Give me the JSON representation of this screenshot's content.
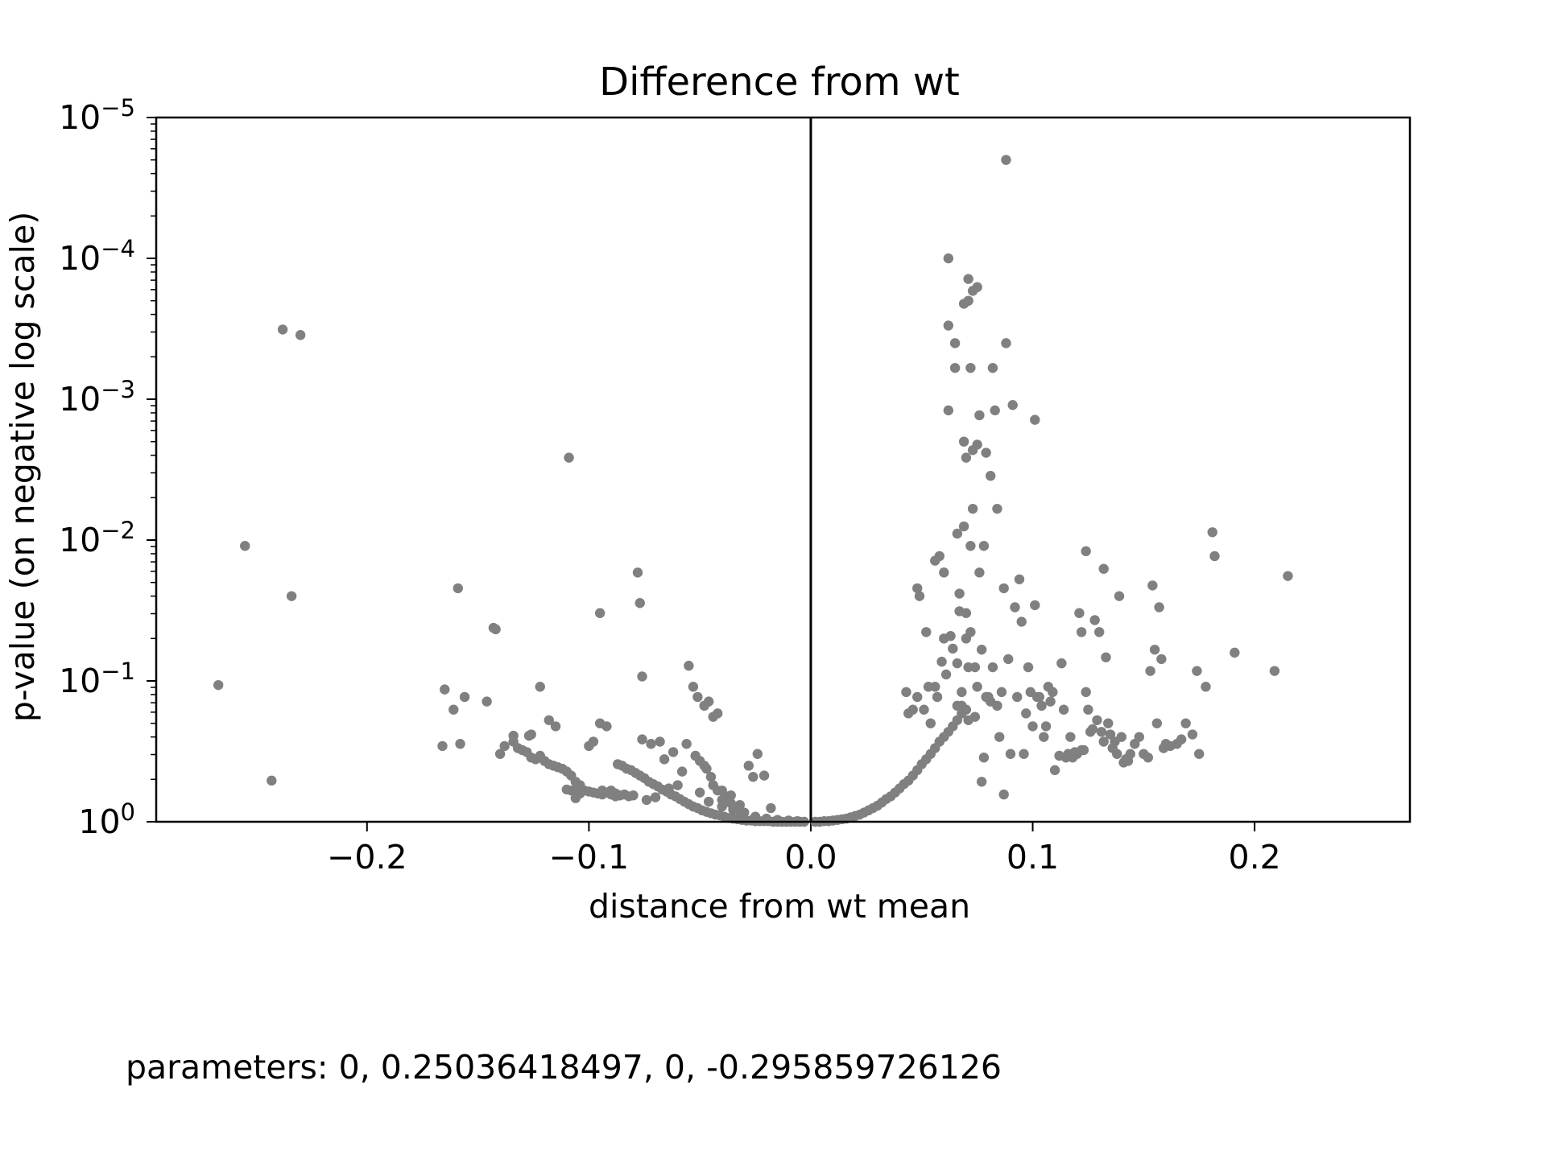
{
  "chart_data": {
    "type": "scatter",
    "title": "Difference from wt",
    "xlabel": "distance from wt mean",
    "ylabel": "p-value (on negative log scale)",
    "xlim": [
      -0.295,
      0.27
    ],
    "ylim": [
      1,
      1e-05
    ],
    "y_scale": "negative log",
    "xticks": [
      {
        "value": -0.2,
        "label": "−0.2"
      },
      {
        "value": -0.1,
        "label": "−0.1"
      },
      {
        "value": 0.0,
        "label": "0.0"
      },
      {
        "value": 0.1,
        "label": "0.1"
      },
      {
        "value": 0.2,
        "label": "0.2"
      }
    ],
    "yticks": [
      {
        "exp": 0,
        "base": "10",
        "sup": "0"
      },
      {
        "exp": -1,
        "base": "10",
        "sup": "−1"
      },
      {
        "exp": -2,
        "base": "10",
        "sup": "−2"
      },
      {
        "exp": -3,
        "base": "10",
        "sup": "−3"
      },
      {
        "exp": -4,
        "base": "10",
        "sup": "−4"
      },
      {
        "exp": -5,
        "base": "10",
        "sup": "−5"
      }
    ],
    "reference_line_x": 0.0,
    "point_color": "#808080",
    "grid": false,
    "legend": "none",
    "points": [
      [
        -0.267,
        0.107
      ],
      [
        -0.255,
        0.011
      ],
      [
        -0.243,
        0.51
      ],
      [
        -0.238,
        0.00032
      ],
      [
        -0.234,
        0.025
      ],
      [
        -0.23,
        0.00035
      ],
      [
        -0.166,
        0.29
      ],
      [
        -0.165,
        0.115
      ],
      [
        -0.161,
        0.16
      ],
      [
        -0.159,
        0.022
      ],
      [
        -0.158,
        0.28
      ],
      [
        -0.156,
        0.13
      ],
      [
        -0.146,
        0.14
      ],
      [
        -0.143,
        0.042
      ],
      [
        -0.142,
        0.043
      ],
      [
        -0.14,
        0.33
      ],
      [
        -0.138,
        0.29
      ],
      [
        -0.134,
        0.27
      ],
      [
        -0.132,
        0.3
      ],
      [
        -0.13,
        0.31
      ],
      [
        -0.128,
        0.32
      ],
      [
        -0.127,
        0.245
      ],
      [
        -0.126,
        0.35
      ],
      [
        -0.124,
        0.36
      ],
      [
        -0.122,
        0.34
      ],
      [
        -0.12,
        0.37
      ],
      [
        -0.118,
        0.39
      ],
      [
        -0.116,
        0.4
      ],
      [
        -0.114,
        0.41
      ],
      [
        -0.112,
        0.42
      ],
      [
        -0.11,
        0.44
      ],
      [
        -0.109,
        0.0026
      ],
      [
        -0.108,
        0.47
      ],
      [
        -0.106,
        0.52
      ],
      [
        -0.104,
        0.55
      ],
      [
        -0.102,
        0.6
      ],
      [
        -0.1,
        0.61
      ],
      [
        -0.098,
        0.62
      ],
      [
        -0.096,
        0.63
      ],
      [
        -0.095,
        0.033
      ],
      [
        -0.094,
        0.6
      ],
      [
        -0.092,
        0.62
      ],
      [
        -0.09,
        0.64
      ],
      [
        -0.088,
        0.63
      ],
      [
        -0.086,
        0.65
      ],
      [
        -0.084,
        0.64
      ],
      [
        -0.082,
        0.66
      ],
      [
        -0.08,
        0.65
      ],
      [
        -0.078,
        0.017
      ],
      [
        -0.077,
        0.028
      ],
      [
        -0.076,
        0.093
      ],
      [
        -0.11,
        0.59
      ],
      [
        -0.108,
        0.6
      ],
      [
        -0.106,
        0.6
      ],
      [
        -0.122,
        0.11
      ],
      [
        -0.126,
        0.24
      ],
      [
        -0.134,
        0.245
      ],
      [
        -0.118,
        0.19
      ],
      [
        -0.115,
        0.21
      ],
      [
        -0.1,
        0.29
      ],
      [
        -0.098,
        0.27
      ],
      [
        -0.095,
        0.2
      ],
      [
        -0.092,
        0.21
      ],
      [
        -0.087,
        0.39
      ],
      [
        -0.085,
        0.4
      ],
      [
        -0.083,
        0.42
      ],
      [
        -0.081,
        0.43
      ],
      [
        -0.079,
        0.45
      ],
      [
        -0.077,
        0.47
      ],
      [
        -0.075,
        0.49
      ],
      [
        -0.073,
        0.52
      ],
      [
        -0.071,
        0.54
      ],
      [
        -0.069,
        0.56
      ],
      [
        -0.067,
        0.59
      ],
      [
        -0.065,
        0.61
      ],
      [
        -0.063,
        0.64
      ],
      [
        -0.061,
        0.66
      ],
      [
        -0.059,
        0.69
      ],
      [
        -0.057,
        0.72
      ],
      [
        -0.055,
        0.75
      ],
      [
        -0.053,
        0.78
      ],
      [
        -0.051,
        0.8
      ],
      [
        -0.049,
        0.83
      ],
      [
        -0.047,
        0.85
      ],
      [
        -0.045,
        0.87
      ],
      [
        -0.043,
        0.89
      ],
      [
        -0.041,
        0.9
      ],
      [
        -0.039,
        0.92
      ],
      [
        -0.037,
        0.94
      ],
      [
        -0.035,
        0.95
      ],
      [
        -0.033,
        0.96
      ],
      [
        -0.031,
        0.97
      ],
      [
        -0.029,
        0.98
      ],
      [
        -0.027,
        0.98
      ],
      [
        -0.025,
        0.99
      ],
      [
        -0.023,
        0.99
      ],
      [
        -0.021,
        0.99
      ],
      [
        -0.019,
        0.99
      ],
      [
        -0.017,
        1.0
      ],
      [
        -0.015,
        1.0
      ],
      [
        -0.013,
        1.0
      ],
      [
        -0.011,
        1.0
      ],
      [
        -0.009,
        1.0
      ],
      [
        -0.007,
        1.0
      ],
      [
        -0.005,
        1.0
      ],
      [
        -0.003,
        1.0
      ],
      [
        -0.076,
        0.26
      ],
      [
        -0.072,
        0.28
      ],
      [
        -0.068,
        0.27
      ],
      [
        -0.066,
        0.36
      ],
      [
        -0.062,
        0.32
      ],
      [
        -0.058,
        0.44
      ],
      [
        -0.055,
        0.078
      ],
      [
        -0.053,
        0.11
      ],
      [
        -0.051,
        0.13
      ],
      [
        -0.048,
        0.15
      ],
      [
        -0.046,
        0.14
      ],
      [
        -0.044,
        0.18
      ],
      [
        -0.042,
        0.17
      ],
      [
        -0.056,
        0.28
      ],
      [
        -0.052,
        0.34
      ],
      [
        -0.048,
        0.4
      ],
      [
        -0.045,
        0.48
      ],
      [
        -0.04,
        0.6
      ],
      [
        -0.036,
        0.65
      ],
      [
        -0.032,
        0.76
      ],
      [
        -0.028,
        0.4
      ],
      [
        -0.026,
        0.48
      ],
      [
        -0.024,
        0.33
      ],
      [
        -0.021,
        0.47
      ],
      [
        -0.018,
        0.8
      ],
      [
        -0.06,
        0.55
      ],
      [
        -0.064,
        0.58
      ],
      [
        -0.05,
        0.62
      ],
      [
        -0.046,
        0.72
      ],
      [
        -0.04,
        0.78
      ],
      [
        -0.035,
        0.82
      ],
      [
        -0.03,
        0.86
      ],
      [
        -0.025,
        0.92
      ],
      [
        -0.02,
        0.95
      ],
      [
        -0.015,
        0.97
      ],
      [
        -0.01,
        0.98
      ],
      [
        -0.006,
        0.99
      ],
      [
        -0.07,
        0.67
      ],
      [
        -0.074,
        0.7
      ],
      [
        -0.09,
        0.6
      ],
      [
        -0.088,
        0.66
      ],
      [
        -0.094,
        0.64
      ],
      [
        -0.104,
        0.63
      ],
      [
        -0.106,
        0.68
      ],
      [
        -0.04,
        0.7
      ],
      [
        -0.038,
        0.66
      ],
      [
        -0.036,
        0.74
      ],
      [
        -0.034,
        0.8
      ],
      [
        -0.032,
        0.84
      ],
      [
        -0.044,
        0.55
      ],
      [
        -0.042,
        0.6
      ],
      [
        -0.047,
        0.42
      ],
      [
        -0.05,
        0.37
      ],
      [
        0.002,
        1.0
      ],
      [
        0.004,
        1.0
      ],
      [
        0.006,
        0.99
      ],
      [
        0.008,
        0.99
      ],
      [
        0.01,
        0.98
      ],
      [
        0.012,
        0.97
      ],
      [
        0.014,
        0.96
      ],
      [
        0.016,
        0.95
      ],
      [
        0.018,
        0.93
      ],
      [
        0.02,
        0.91
      ],
      [
        0.022,
        0.89
      ],
      [
        0.024,
        0.86
      ],
      [
        0.026,
        0.83
      ],
      [
        0.028,
        0.8
      ],
      [
        0.03,
        0.77
      ],
      [
        0.032,
        0.73
      ],
      [
        0.034,
        0.69
      ],
      [
        0.036,
        0.66
      ],
      [
        0.038,
        0.62
      ],
      [
        0.04,
        0.58
      ],
      [
        0.042,
        0.54
      ],
      [
        0.044,
        0.51
      ],
      [
        0.046,
        0.47
      ],
      [
        0.048,
        0.43
      ],
      [
        0.05,
        0.39
      ],
      [
        0.052,
        0.36
      ],
      [
        0.054,
        0.33
      ],
      [
        0.056,
        0.3
      ],
      [
        0.058,
        0.27
      ],
      [
        0.06,
        0.25
      ],
      [
        0.062,
        0.23
      ],
      [
        0.064,
        0.21
      ],
      [
        0.066,
        0.19
      ],
      [
        0.068,
        0.17
      ],
      [
        0.07,
        0.16
      ],
      [
        0.043,
        0.12
      ],
      [
        0.044,
        0.17
      ],
      [
        0.046,
        0.16
      ],
      [
        0.048,
        0.13
      ],
      [
        0.048,
        0.022
      ],
      [
        0.049,
        0.025
      ],
      [
        0.051,
        0.16
      ],
      [
        0.052,
        0.045
      ],
      [
        0.053,
        0.11
      ],
      [
        0.054,
        0.2
      ],
      [
        0.056,
        0.11
      ],
      [
        0.056,
        0.014
      ],
      [
        0.057,
        0.13
      ],
      [
        0.058,
        0.013
      ],
      [
        0.059,
        0.073
      ],
      [
        0.06,
        0.05
      ],
      [
        0.06,
        0.017
      ],
      [
        0.061,
        0.09
      ],
      [
        0.062,
        0.0012
      ],
      [
        0.062,
        0.0003
      ],
      [
        0.062,
        0.0001
      ],
      [
        0.063,
        0.048
      ],
      [
        0.064,
        0.059
      ],
      [
        0.065,
        0.0006
      ],
      [
        0.065,
        0.0004
      ],
      [
        0.066,
        0.15
      ],
      [
        0.066,
        0.075
      ],
      [
        0.066,
        0.009
      ],
      [
        0.067,
        0.032
      ],
      [
        0.067,
        0.024
      ],
      [
        0.068,
        0.12
      ],
      [
        0.068,
        0.15
      ],
      [
        0.069,
        0.008
      ],
      [
        0.069,
        0.002
      ],
      [
        0.069,
        0.00021
      ],
      [
        0.07,
        0.0026
      ],
      [
        0.07,
        0.05
      ],
      [
        0.07,
        0.033
      ],
      [
        0.071,
        0.00014
      ],
      [
        0.071,
        0.0002
      ],
      [
        0.071,
        0.08
      ],
      [
        0.071,
        0.19
      ],
      [
        0.072,
        0.011
      ],
      [
        0.072,
        0.0006
      ],
      [
        0.072,
        0.045
      ],
      [
        0.073,
        0.0023
      ],
      [
        0.073,
        0.006
      ],
      [
        0.073,
        0.00017
      ],
      [
        0.074,
        0.18
      ],
      [
        0.074,
        0.08
      ],
      [
        0.075,
        0.00016
      ],
      [
        0.075,
        0.0021
      ],
      [
        0.075,
        0.11
      ],
      [
        0.076,
        0.0013
      ],
      [
        0.076,
        0.017
      ],
      [
        0.077,
        0.06
      ],
      [
        0.077,
        0.52
      ],
      [
        0.078,
        0.35
      ],
      [
        0.078,
        0.011
      ],
      [
        0.079,
        0.13
      ],
      [
        0.079,
        0.0024
      ],
      [
        0.08,
        0.13
      ],
      [
        0.081,
        0.0035
      ],
      [
        0.081,
        0.14
      ],
      [
        0.082,
        0.08
      ],
      [
        0.082,
        0.0006
      ],
      [
        0.083,
        0.0012
      ],
      [
        0.084,
        0.006
      ],
      [
        0.084,
        0.15
      ],
      [
        0.085,
        0.25
      ],
      [
        0.086,
        0.12
      ],
      [
        0.087,
        0.022
      ],
      [
        0.087,
        0.64
      ],
      [
        0.088,
        0.0004
      ],
      [
        0.088,
        2e-05
      ],
      [
        0.089,
        0.07
      ],
      [
        0.09,
        0.33
      ],
      [
        0.091,
        0.0011
      ],
      [
        0.092,
        0.03
      ],
      [
        0.093,
        0.13
      ],
      [
        0.094,
        0.019
      ],
      [
        0.095,
        0.038
      ],
      [
        0.096,
        0.33
      ],
      [
        0.097,
        0.17
      ],
      [
        0.098,
        0.08
      ],
      [
        0.099,
        0.12
      ],
      [
        0.1,
        0.21
      ],
      [
        0.101,
        0.0014
      ],
      [
        0.101,
        0.029
      ],
      [
        0.102,
        0.13
      ],
      [
        0.103,
        0.13
      ],
      [
        0.104,
        0.15
      ],
      [
        0.105,
        0.25
      ],
      [
        0.106,
        0.21
      ],
      [
        0.107,
        0.11
      ],
      [
        0.108,
        0.14
      ],
      [
        0.109,
        0.12
      ],
      [
        0.11,
        0.43
      ],
      [
        0.112,
        0.34
      ],
      [
        0.113,
        0.075
      ],
      [
        0.114,
        0.16
      ],
      [
        0.115,
        0.35
      ],
      [
        0.116,
        0.33
      ],
      [
        0.117,
        0.25
      ],
      [
        0.118,
        0.35
      ],
      [
        0.119,
        0.32
      ],
      [
        0.12,
        0.33
      ],
      [
        0.121,
        0.033
      ],
      [
        0.122,
        0.045
      ],
      [
        0.122,
        0.31
      ],
      [
        0.123,
        0.31
      ],
      [
        0.124,
        0.12
      ],
      [
        0.124,
        0.012
      ],
      [
        0.125,
        0.16
      ],
      [
        0.126,
        0.23
      ],
      [
        0.127,
        0.22
      ],
      [
        0.128,
        0.037
      ],
      [
        0.129,
        0.19
      ],
      [
        0.13,
        0.045
      ],
      [
        0.131,
        0.23
      ],
      [
        0.132,
        0.016
      ],
      [
        0.132,
        0.27
      ],
      [
        0.133,
        0.068
      ],
      [
        0.134,
        0.2
      ],
      [
        0.135,
        0.24
      ],
      [
        0.136,
        0.3
      ],
      [
        0.137,
        0.27
      ],
      [
        0.138,
        0.33
      ],
      [
        0.139,
        0.025
      ],
      [
        0.14,
        0.25
      ],
      [
        0.141,
        0.38
      ],
      [
        0.142,
        0.36
      ],
      [
        0.143,
        0.37
      ],
      [
        0.144,
        0.33
      ],
      [
        0.146,
        0.28
      ],
      [
        0.148,
        0.25
      ],
      [
        0.15,
        0.33
      ],
      [
        0.152,
        0.35
      ],
      [
        0.153,
        0.085
      ],
      [
        0.154,
        0.021
      ],
      [
        0.155,
        0.06
      ],
      [
        0.156,
        0.2
      ],
      [
        0.157,
        0.03
      ],
      [
        0.158,
        0.07
      ],
      [
        0.159,
        0.3
      ],
      [
        0.16,
        0.28
      ],
      [
        0.162,
        0.29
      ],
      [
        0.165,
        0.28
      ],
      [
        0.167,
        0.26
      ],
      [
        0.169,
        0.2
      ],
      [
        0.172,
        0.24
      ],
      [
        0.174,
        0.085
      ],
      [
        0.175,
        0.33
      ],
      [
        0.178,
        0.11
      ],
      [
        0.181,
        0.0088
      ],
      [
        0.182,
        0.013
      ],
      [
        0.191,
        0.063
      ],
      [
        0.209,
        0.085
      ],
      [
        0.215,
        0.018
      ]
    ]
  },
  "footer": {
    "text": "parameters: 0, 0.25036418497, 0, -0.295859726126"
  }
}
